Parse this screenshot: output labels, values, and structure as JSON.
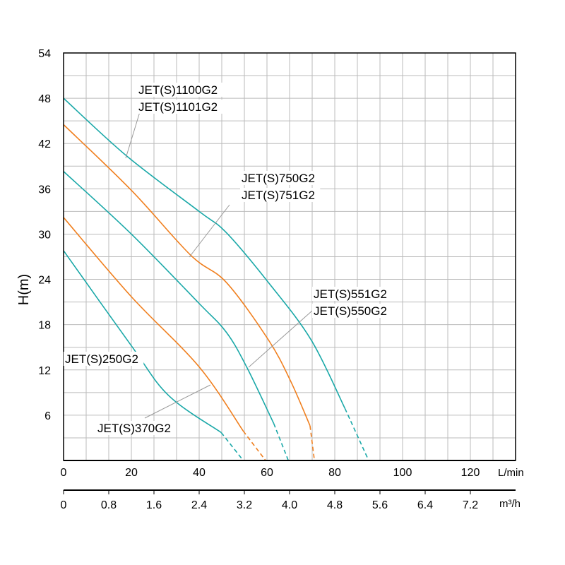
{
  "chart_data": {
    "type": "line",
    "title": "",
    "ylabel": "H(m)",
    "xlabel": "L/min",
    "x2label": "m³/h",
    "xlim": [
      0,
      133.33
    ],
    "ylim": [
      0,
      54
    ],
    "grid": true,
    "x_ticks": [
      0,
      20,
      40,
      60,
      80,
      100,
      120
    ],
    "x2_ticks": [
      "0",
      "0.8",
      "1.6",
      "2.4",
      "3.2",
      "4.0",
      "4.8",
      "5.6",
      "6.4",
      "7.2"
    ],
    "y_ticks": [
      6,
      12,
      18,
      24,
      30,
      36,
      42,
      48,
      54
    ],
    "colors": {
      "teal": "#1aa8a8",
      "orange": "#f07f1e"
    },
    "series": [
      {
        "name": "JET(S)1100G2 / JET(S)1101G2",
        "color": "#1aa8a8",
        "points": [
          [
            0,
            48
          ],
          [
            18.75,
            40.3
          ],
          [
            40,
            33
          ],
          [
            48,
            30.2
          ],
          [
            60.4,
            23.6
          ],
          [
            73,
            16
          ],
          [
            83,
            6.9
          ]
        ],
        "dashed": [
          [
            83,
            6.9
          ],
          [
            90,
            0
          ]
        ]
      },
      {
        "name": "JET(S)750G2 / JET(S)751G2",
        "color": "#f07f1e",
        "points": [
          [
            0,
            44.5
          ],
          [
            20,
            35.8
          ],
          [
            37.5,
            27.2
          ],
          [
            48,
            23.6
          ],
          [
            60.4,
            16
          ],
          [
            67,
            10.5
          ],
          [
            72.7,
            4.6
          ]
        ],
        "dashed": [
          [
            72.7,
            4.6
          ],
          [
            74,
            0
          ]
        ]
      },
      {
        "name": "JET(S)551G2 / JET(S)550G2",
        "color": "#1aa8a8",
        "points": [
          [
            0,
            38.3
          ],
          [
            20,
            30
          ],
          [
            40,
            20.8
          ],
          [
            48,
            17
          ],
          [
            54,
            12.4
          ],
          [
            62,
            4.9
          ]
        ],
        "dashed": [
          [
            62,
            4.9
          ],
          [
            66.3,
            0
          ]
        ]
      },
      {
        "name": "JET(S)370G2",
        "color": "#f07f1e",
        "points": [
          [
            0,
            32.2
          ],
          [
            20,
            21.7
          ],
          [
            40,
            12.4
          ],
          [
            53,
            3.9
          ]
        ],
        "dashed": [
          [
            53,
            3.9
          ],
          [
            59.6,
            0
          ]
        ]
      },
      {
        "name": "JET(S)250G2",
        "color": "#1aa8a8",
        "points": [
          [
            0,
            27.8
          ],
          [
            20,
            15.2
          ],
          [
            31,
            8.6
          ],
          [
            46.5,
            3.7
          ]
        ],
        "dashed": [
          [
            46.5,
            3.7
          ],
          [
            53,
            0
          ]
        ]
      }
    ],
    "annotations": [
      {
        "lines": [
          "JET(S)1100G2",
          "JET(S)1101G2"
        ]
      },
      {
        "lines": [
          "JET(S)750G2",
          "JET(S)751G2"
        ]
      },
      {
        "lines": [
          "JET(S)551G2",
          "JET(S)550G2"
        ]
      },
      {
        "lines": [
          "JET(S)250G2"
        ]
      },
      {
        "lines": [
          "JET(S)370G2"
        ]
      }
    ]
  }
}
